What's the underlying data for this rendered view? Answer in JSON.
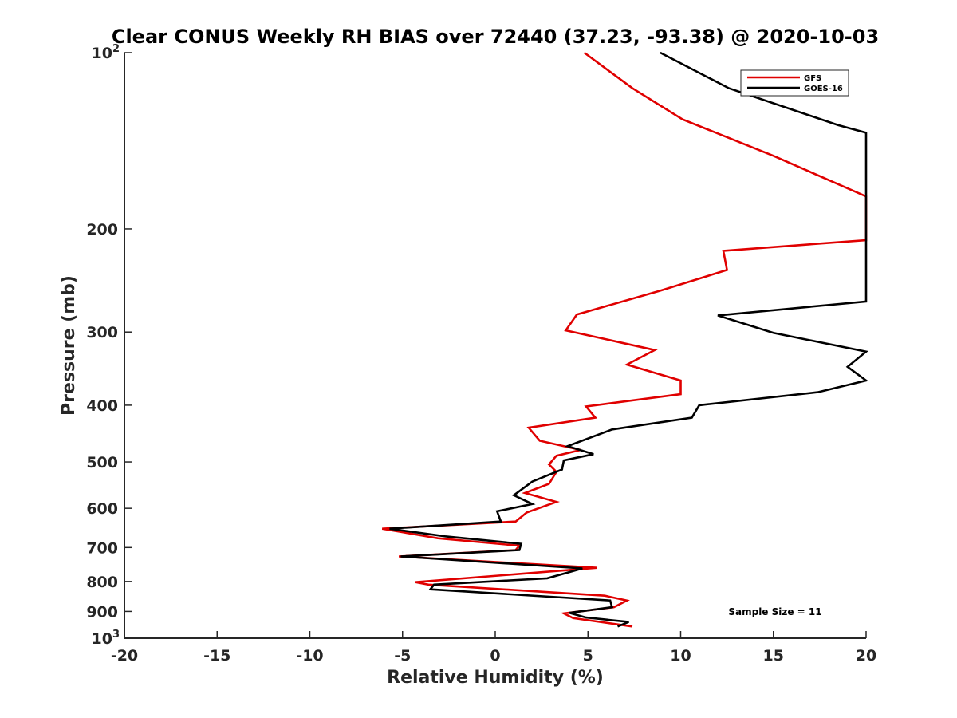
{
  "chart_data": {
    "type": "line",
    "title": "Clear CONUS Weekly RH BIAS over 72440 (37.23, -93.38) @ 2020-10-03",
    "xlabel": "Relative Humidity (%)",
    "ylabel": "Pressure (mb)",
    "xlim": [
      -20,
      20
    ],
    "ylim": [
      100,
      1000
    ],
    "y_scale": "log",
    "y_reversed": true,
    "grid": false,
    "legend_placement": "top-right",
    "x_ticks": [
      -20,
      -15,
      -10,
      -5,
      0,
      5,
      10,
      15,
      20
    ],
    "x_tick_labels": [
      "-20",
      "-15",
      "-10",
      "-5",
      "0",
      "5",
      "10",
      "15",
      "20"
    ],
    "y_ticks": [
      {
        "value": 100,
        "base": "10",
        "exp": "2"
      },
      {
        "value": 200,
        "base": "200",
        "exp": ""
      },
      {
        "value": 300,
        "base": "300",
        "exp": ""
      },
      {
        "value": 400,
        "base": "400",
        "exp": ""
      },
      {
        "value": 500,
        "base": "500",
        "exp": ""
      },
      {
        "value": 600,
        "base": "600",
        "exp": ""
      },
      {
        "value": 700,
        "base": "700",
        "exp": ""
      },
      {
        "value": 800,
        "base": "800",
        "exp": ""
      },
      {
        "value": 900,
        "base": "900",
        "exp": ""
      },
      {
        "value": 1000,
        "base": "10",
        "exp": "3"
      }
    ],
    "series": [
      {
        "name": "GFS",
        "color": "#e00000",
        "points": [
          [
            4.8,
            100
          ],
          [
            7.4,
            115
          ],
          [
            10.1,
            130
          ],
          [
            15.0,
            150
          ],
          [
            20.0,
            176
          ],
          [
            20.0,
            209
          ],
          [
            12.3,
            218
          ],
          [
            12.5,
            235
          ],
          [
            8.9,
            255
          ],
          [
            4.4,
            280
          ],
          [
            3.8,
            298
          ],
          [
            8.6,
            322
          ],
          [
            7.1,
            341
          ],
          [
            10.0,
            363
          ],
          [
            10.0,
            383
          ],
          [
            4.9,
            402
          ],
          [
            5.4,
            420
          ],
          [
            1.8,
            437
          ],
          [
            2.4,
            460
          ],
          [
            4.6,
            477
          ],
          [
            3.3,
            488
          ],
          [
            2.9,
            505
          ],
          [
            3.3,
            520
          ],
          [
            2.9,
            545
          ],
          [
            1.6,
            565
          ],
          [
            3.3,
            585
          ],
          [
            1.7,
            610
          ],
          [
            1.1,
            632
          ],
          [
            -6.1,
            650
          ],
          [
            -3.1,
            675
          ],
          [
            1.3,
            695
          ],
          [
            1.1,
            707
          ],
          [
            -5.2,
            725
          ],
          [
            5.5,
            758
          ],
          [
            -4.3,
            802
          ],
          [
            -3.6,
            810
          ],
          [
            5.9,
            846
          ],
          [
            7.1,
            862
          ],
          [
            6.4,
            885
          ],
          [
            3.7,
            907
          ],
          [
            4.2,
            924
          ],
          [
            7.4,
            955
          ]
        ]
      },
      {
        "name": "GOES-16",
        "color": "#000000",
        "points": [
          [
            8.9,
            100
          ],
          [
            12.6,
            115
          ],
          [
            18.5,
            133
          ],
          [
            20.0,
            137
          ],
          [
            20.0,
            266
          ],
          [
            12.0,
            281
          ],
          [
            15.0,
            301
          ],
          [
            20.0,
            324
          ],
          [
            19.0,
            344
          ],
          [
            20.0,
            363
          ],
          [
            17.4,
            380
          ],
          [
            11.0,
            400
          ],
          [
            10.6,
            420
          ],
          [
            6.3,
            440
          ],
          [
            3.9,
            470
          ],
          [
            5.3,
            485
          ],
          [
            3.7,
            497
          ],
          [
            3.6,
            515
          ],
          [
            2.0,
            540
          ],
          [
            1.0,
            570
          ],
          [
            2.0,
            590
          ],
          [
            0.1,
            607
          ],
          [
            0.3,
            632
          ],
          [
            -5.7,
            650
          ],
          [
            -2.7,
            670
          ],
          [
            1.4,
            690
          ],
          [
            1.3,
            707
          ],
          [
            -5.1,
            725
          ],
          [
            4.7,
            760
          ],
          [
            2.8,
            790
          ],
          [
            -3.3,
            810
          ],
          [
            -3.5,
            825
          ],
          [
            6.2,
            862
          ],
          [
            6.3,
            885
          ],
          [
            4.0,
            905
          ],
          [
            4.9,
            922
          ],
          [
            7.2,
            938
          ],
          [
            6.6,
            955
          ]
        ]
      }
    ],
    "annotation": "Sample Size = 11"
  }
}
